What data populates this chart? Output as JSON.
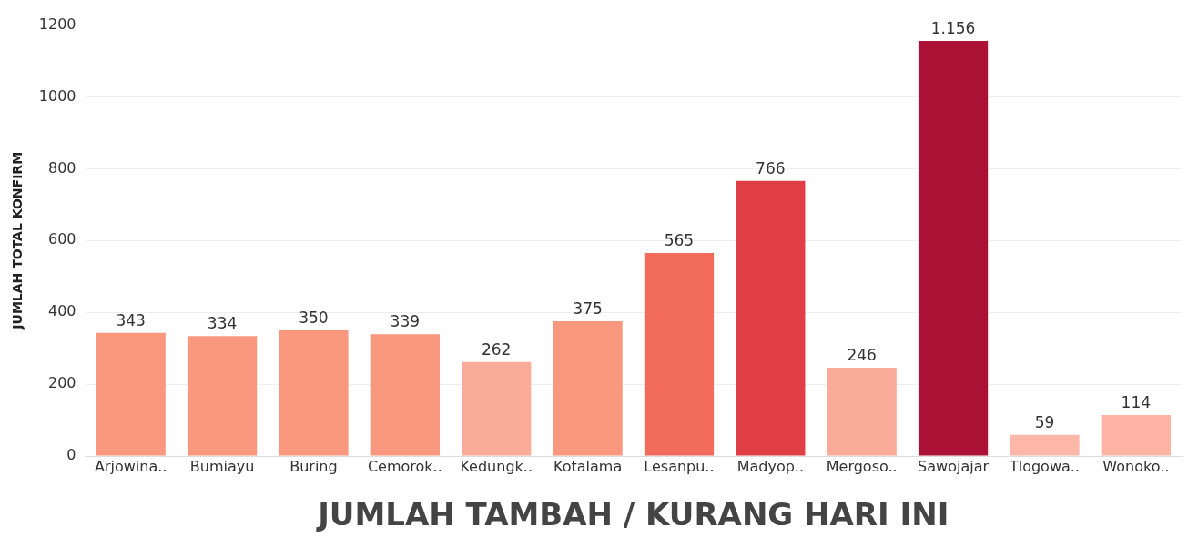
{
  "chart_data": {
    "type": "bar",
    "xlabel": "JUMLAH TAMBAH / KURANG HARI INI",
    "ylabel": "JUMLAH TOTAL KONFIRM",
    "categories": [
      "Arjowina..",
      "Bumiayu",
      "Buring",
      "Cemorok..",
      "Kedungk..",
      "Kotalama",
      "Lesanpu..",
      "Madyop..",
      "Mergoso..",
      "Sawojajar",
      "Tlogowa..",
      "Wonoko.."
    ],
    "values": [
      343,
      334,
      350,
      339,
      262,
      375,
      565,
      766,
      246,
      1156,
      59,
      114
    ],
    "value_labels": [
      "343",
      "334",
      "350",
      "339",
      "262",
      "375",
      "565",
      "766",
      "246",
      "1.156",
      "59",
      "114"
    ],
    "colors": [
      "#f9977f",
      "#f9977f",
      "#f9977f",
      "#f9977f",
      "#fbab99",
      "#f9977f",
      "#f26b5b",
      "#e03e45",
      "#fbab99",
      "#ac1236",
      "#fcb7a8",
      "#fcb3a4"
    ],
    "ylim": [
      0,
      1200
    ],
    "yticks": [
      0,
      200,
      400,
      600,
      800,
      1000,
      1200
    ],
    "grid": "y",
    "legend": false
  }
}
